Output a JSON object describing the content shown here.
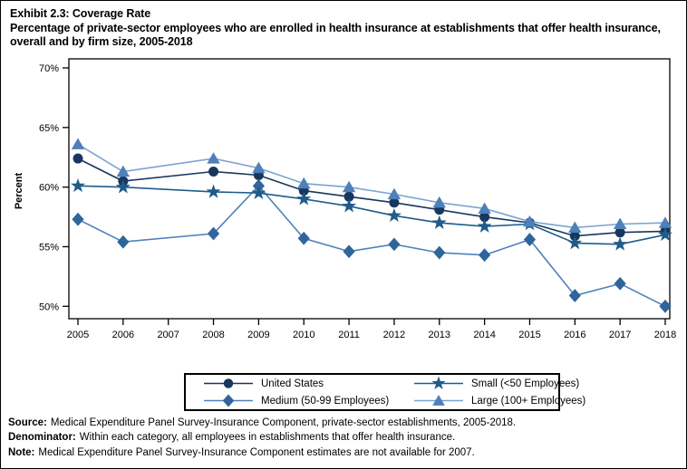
{
  "chart_data": {
    "type": "line",
    "title": "Exhibit 2.3: Coverage Rate",
    "subtitle": "Percentage of private-sector employees who are enrolled in health insurance at establishments that offer health insurance, overall and by firm size, 2005-2018",
    "ylabel": "Percent",
    "ylim": [
      50,
      70
    ],
    "grid": false,
    "legend_position": "bottom",
    "y_ticks": [
      {
        "value": 70,
        "label": "70%"
      },
      {
        "value": 65,
        "label": "65%"
      },
      {
        "value": 60,
        "label": "60%"
      },
      {
        "value": 55,
        "label": "55%"
      },
      {
        "value": 50,
        "label": "50%"
      }
    ],
    "categories": [
      "2005",
      "2006",
      "2007",
      "2008",
      "2009",
      "2010",
      "2011",
      "2012",
      "2013",
      "2014",
      "2015",
      "2016",
      "2017",
      "2018"
    ],
    "series": [
      {
        "name": "United States",
        "marker": "circle",
        "marker_color": "#17375E",
        "line_color": "#17375E",
        "values": [
          62.4,
          60.5,
          null,
          61.3,
          61.0,
          59.7,
          59.2,
          58.7,
          58.1,
          57.5,
          57.0,
          55.9,
          56.2,
          56.3
        ]
      },
      {
        "name": "Medium (50-99 Employees)",
        "marker": "diamond",
        "marker_color": "#2F659B",
        "line_color": "#4F81BD",
        "values": [
          57.3,
          55.4,
          null,
          56.1,
          60.1,
          55.7,
          54.6,
          55.2,
          54.5,
          54.3,
          55.6,
          50.9,
          51.9,
          50.0
        ]
      },
      {
        "name": "Small (<50 Employees)",
        "marker": "star",
        "marker_color": "#1F5C8A",
        "line_color": "#1F5C8A",
        "values": [
          60.1,
          60.0,
          null,
          59.6,
          59.5,
          59.0,
          58.4,
          57.6,
          57.0,
          56.7,
          56.9,
          55.3,
          55.2,
          56.0
        ]
      },
      {
        "name": "Large (100+ Employees)",
        "marker": "triangle",
        "marker_color": "#4E80BA",
        "line_color": "#7CA3D1",
        "values": [
          63.6,
          61.3,
          null,
          62.4,
          61.6,
          60.3,
          60.0,
          59.4,
          58.7,
          58.2,
          57.1,
          56.6,
          56.9,
          57.0
        ]
      }
    ]
  },
  "legend": {
    "order": [
      "United States",
      "Small (<50 Employees)",
      "Medium (50-99 Employees)",
      "Large (100+ Employees)"
    ]
  },
  "footnotes": [
    {
      "label": "Source:",
      "text": "Medical Expenditure Panel Survey-Insurance Component, private-sector establishments, 2005-2018."
    },
    {
      "label": "Denominator:",
      "text": "Within each category, all employees in establishments that offer health insurance."
    },
    {
      "label": "Note:",
      "text": "Medical Expenditure Panel Survey-Insurance Component estimates are not available for 2007."
    }
  ]
}
